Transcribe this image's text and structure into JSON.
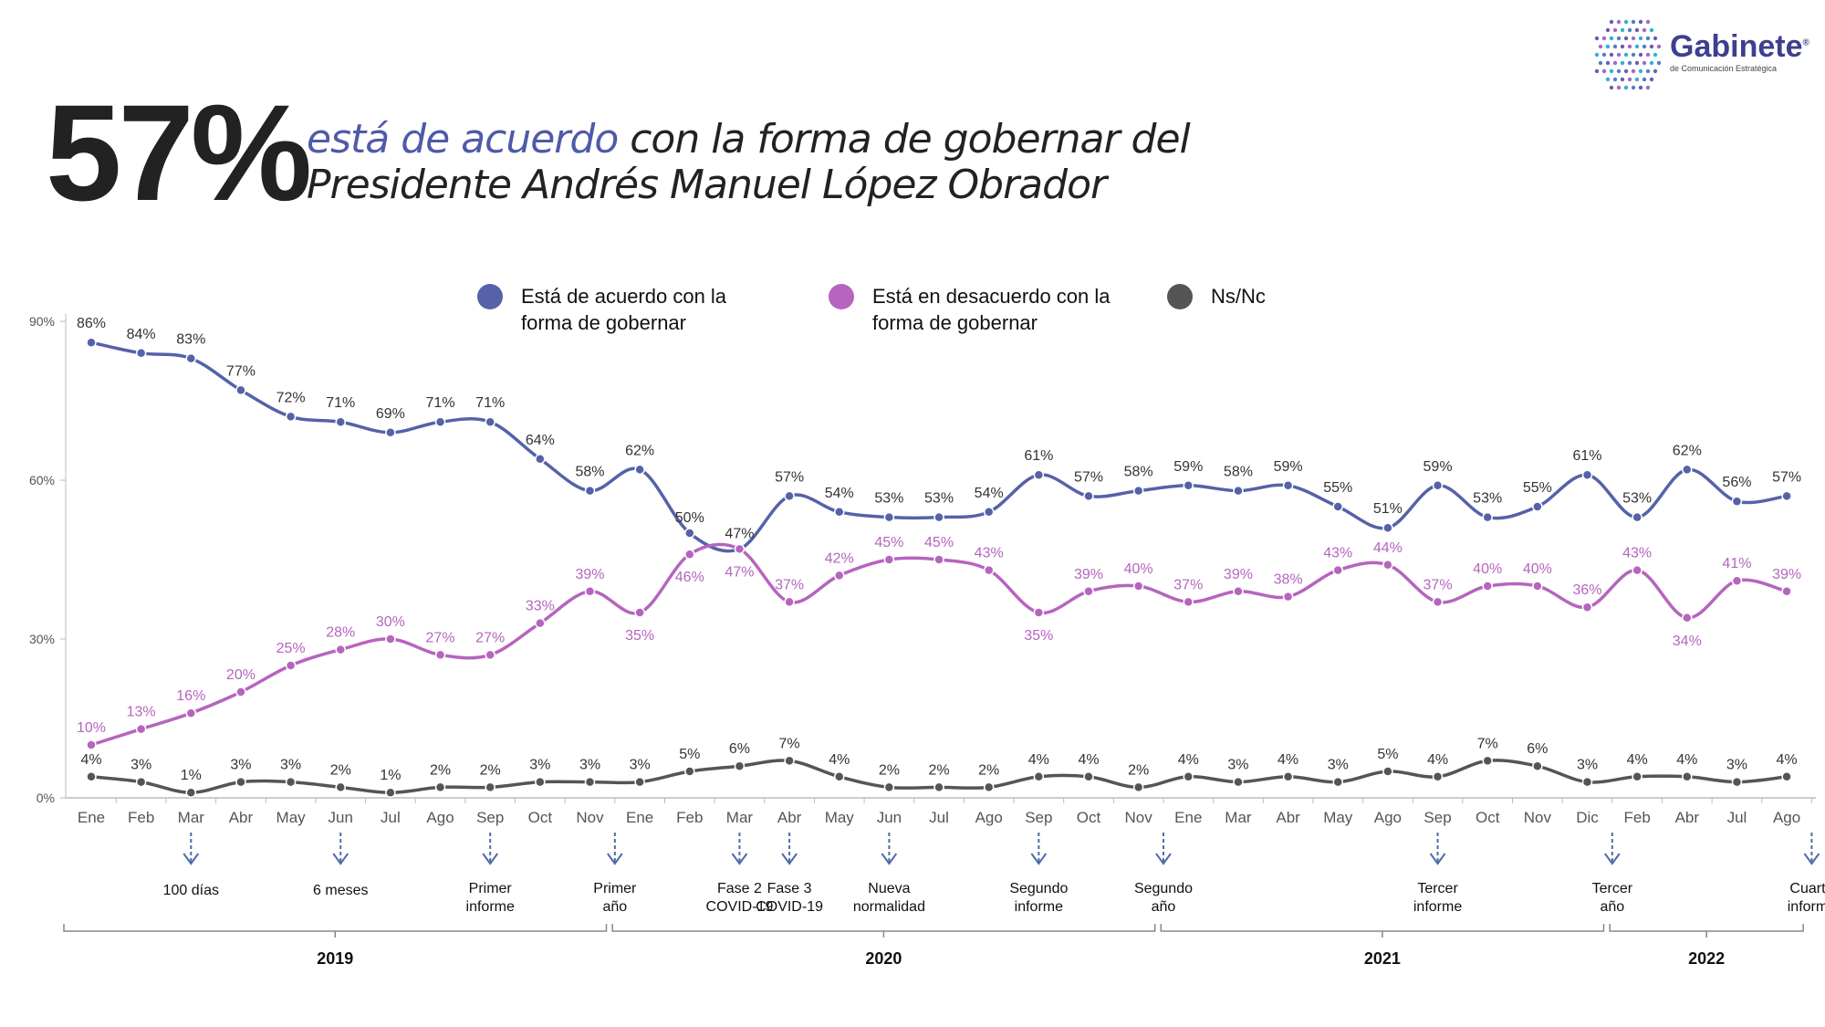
{
  "headline": {
    "percent": "57%",
    "accent_text": "está de acuerdo",
    "rest_line1": " con la forma de gobernar del",
    "line2": "Presidente Andrés Manuel López Obrador"
  },
  "logo": {
    "name": "Gabinete",
    "registered": "®",
    "subtitle": "de Comunicación Estratégica"
  },
  "colors": {
    "agree": "#5562a8",
    "disagree": "#b565be",
    "nsnc": "#555555",
    "axis": "#bbbbbb",
    "event_arrow": "#4f6aa8"
  },
  "chart_data": {
    "type": "line",
    "x": [
      "Ene",
      "Feb",
      "Mar",
      "Abr",
      "May",
      "Jun",
      "Jul",
      "Ago",
      "Sep",
      "Oct",
      "Nov",
      "Ene",
      "Feb",
      "Mar",
      "Abr",
      "May",
      "Jun",
      "Jul",
      "Ago",
      "Sep",
      "Oct",
      "Nov",
      "Ene",
      "Mar",
      "Abr",
      "May",
      "Ago",
      "Sep",
      "Oct",
      "Nov",
      "Dic",
      "Feb",
      "Abr",
      "Jul",
      "Ago"
    ],
    "ylim": [
      0,
      90
    ],
    "yticks": [
      "0%",
      "30%",
      "60%",
      "90%"
    ],
    "series": [
      {
        "name": "Está de acuerdo con la forma de gobernar",
        "legend_lines": [
          "Está de acuerdo con la",
          "forma de gobernar"
        ],
        "values": [
          86,
          84,
          83,
          77,
          72,
          71,
          69,
          71,
          71,
          64,
          58,
          62,
          50,
          47,
          57,
          54,
          53,
          53,
          54,
          61,
          57,
          58,
          59,
          58,
          59,
          55,
          51,
          59,
          53,
          55,
          61,
          53,
          62,
          56,
          57
        ]
      },
      {
        "name": "Está en desacuerdo con la forma de gobernar",
        "legend_lines": [
          "Está en desacuerdo con la",
          "forma de gobernar"
        ],
        "values": [
          10,
          13,
          16,
          20,
          25,
          28,
          30,
          27,
          27,
          33,
          39,
          35,
          46,
          47,
          37,
          42,
          45,
          45,
          43,
          35,
          39,
          40,
          37,
          39,
          38,
          43,
          44,
          37,
          40,
          40,
          36,
          43,
          34,
          41,
          39
        ]
      },
      {
        "name": "Ns/Nc",
        "legend_lines": [
          "Ns/Nc"
        ],
        "values": [
          4,
          3,
          1,
          3,
          3,
          2,
          1,
          2,
          2,
          3,
          3,
          3,
          5,
          6,
          7,
          4,
          2,
          2,
          2,
          4,
          4,
          2,
          4,
          3,
          4,
          3,
          5,
          4,
          7,
          6,
          3,
          4,
          4,
          3,
          4
        ]
      }
    ],
    "events": [
      {
        "after_index": 2,
        "lines": [
          "100 días"
        ]
      },
      {
        "after_index": 5,
        "lines": [
          "6 meses"
        ]
      },
      {
        "after_index": 8,
        "lines": [
          "Primer",
          "informe"
        ]
      },
      {
        "after_index": 10.5,
        "lines": [
          "Primer",
          "año"
        ]
      },
      {
        "after_index": 13,
        "lines": [
          "Fase 2",
          "COVID-19"
        ]
      },
      {
        "after_index": 14,
        "lines": [
          "Fase 3",
          "COVID-19"
        ]
      },
      {
        "after_index": 16,
        "lines": [
          "Nueva",
          "normalidad"
        ]
      },
      {
        "after_index": 19,
        "lines": [
          "Segundo",
          "informe"
        ]
      },
      {
        "after_index": 21.5,
        "lines": [
          "Segundo",
          "año"
        ]
      },
      {
        "after_index": 27,
        "lines": [
          "Tercer",
          "informe"
        ]
      },
      {
        "after_index": 30.5,
        "lines": [
          "Tercer",
          "año"
        ]
      },
      {
        "after_index": 34.5,
        "lines": [
          "Cuarto",
          "informe"
        ]
      }
    ],
    "years": [
      {
        "label": "2019",
        "start_index": 0,
        "end_index": 10
      },
      {
        "label": "2020",
        "start_index": 11,
        "end_index": 21
      },
      {
        "label": "2021",
        "start_index": 22,
        "end_index": 30
      },
      {
        "label": "2022",
        "start_index": 31,
        "end_index": 34
      }
    ]
  }
}
